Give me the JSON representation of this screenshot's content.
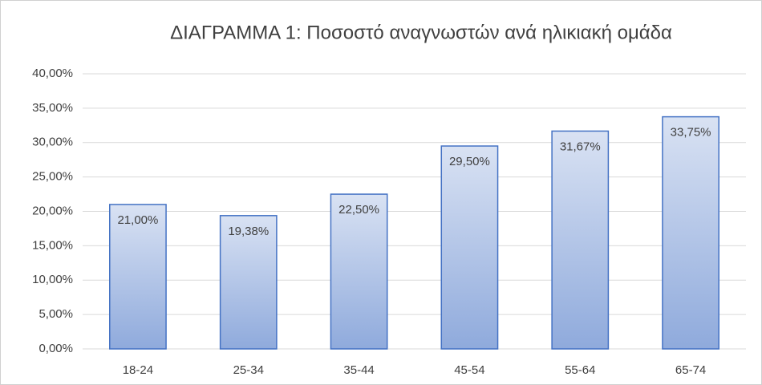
{
  "chart_data": {
    "type": "bar",
    "title": "ΔΙΑΓΡΑΜΜΑ 1: Ποσοστό αναγνωστών ανά ηλικιακή ομάδα",
    "categories": [
      "18-24",
      "25-34",
      "35-44",
      "45-54",
      "55-64",
      "65-74"
    ],
    "values": [
      21.0,
      19.38,
      22.5,
      29.5,
      31.67,
      33.75
    ],
    "value_labels": [
      "21,00%",
      "19,38%",
      "22,50%",
      "29,50%",
      "31,67%",
      "33,75%"
    ],
    "color": "#8faadc",
    "edge_color": "#4472c4",
    "ylim": [
      0,
      40
    ],
    "yticks": [
      {
        "value": 0,
        "label": "0,00%"
      },
      {
        "value": 5,
        "label": "5,00%"
      },
      {
        "value": 10,
        "label": "10,00%"
      },
      {
        "value": 15,
        "label": "15,00%"
      },
      {
        "value": 20,
        "label": "20,00%"
      },
      {
        "value": 25,
        "label": "25,00%"
      },
      {
        "value": 30,
        "label": "30,00%"
      },
      {
        "value": 35,
        "label": "35,00%"
      },
      {
        "value": 40,
        "label": "40,00%"
      }
    ],
    "grid": true
  }
}
